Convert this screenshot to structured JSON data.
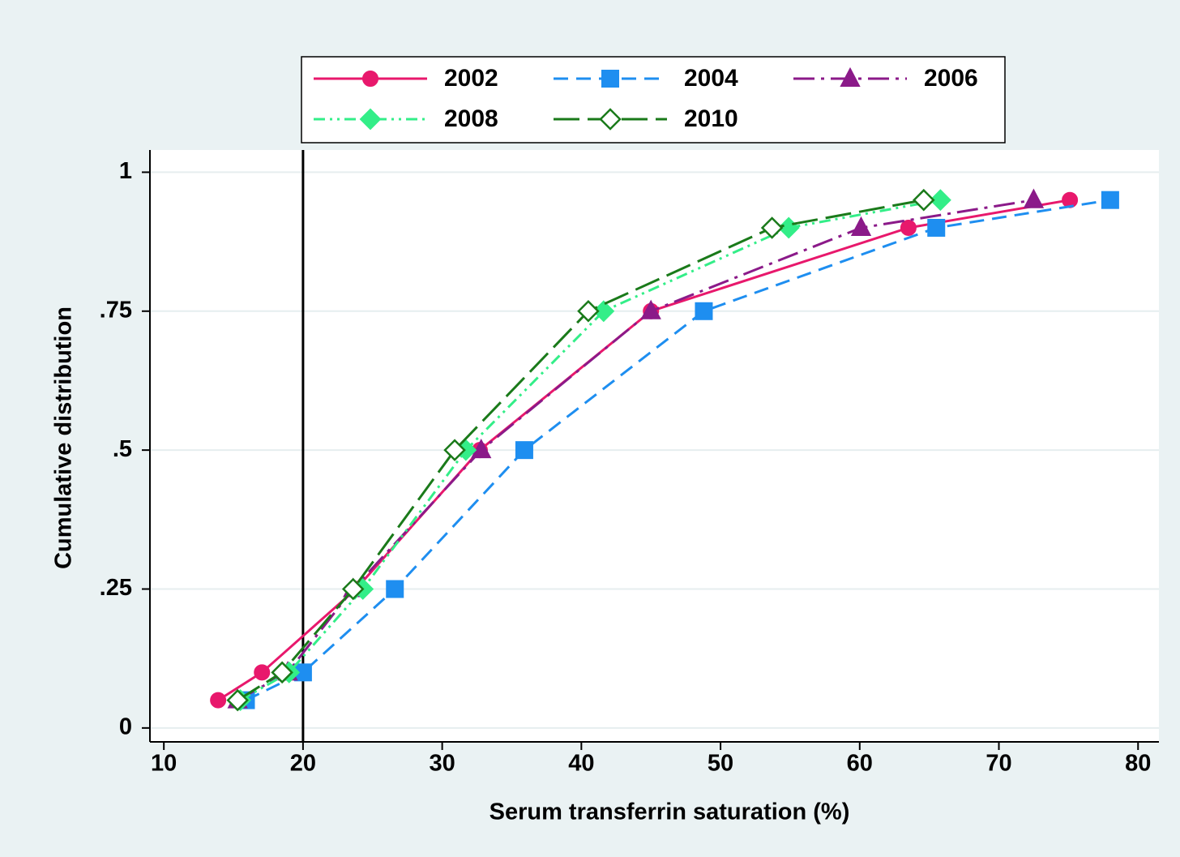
{
  "chart_data": {
    "type": "line",
    "xlabel": "Serum transferrin saturation (%)",
    "ylabel": "Cumulative distribution",
    "xlim": [
      9,
      81.5
    ],
    "ylim": [
      -0.025,
      1.04
    ],
    "xticks": [
      10,
      20,
      30,
      40,
      50,
      60,
      70,
      80
    ],
    "yticks": [
      0,
      {
        "value": 0.25,
        "label": ".25"
      },
      {
        "value": 0.5,
        "label": ".5"
      },
      {
        "value": 0.75,
        "label": ".75"
      },
      1
    ],
    "grid": true,
    "xline": 20,
    "legend": "top",
    "series": [
      {
        "name": "2002",
        "color": "#e8186c",
        "dash": "solid",
        "marker": "circle",
        "x": [
          13.9,
          17.05,
          23.8,
          32.7,
          45.0,
          63.5,
          75.1
        ],
        "values": [
          0.05,
          0.1,
          0.25,
          0.5,
          0.75,
          0.9,
          0.95
        ]
      },
      {
        "name": "2004",
        "color": "#1e8ef0",
        "dash": "dash",
        "marker": "square",
        "x": [
          15.9,
          20.0,
          26.6,
          35.9,
          48.8,
          65.5,
          78.0
        ],
        "values": [
          0.05,
          0.1,
          0.25,
          0.5,
          0.75,
          0.9,
          0.95
        ]
      },
      {
        "name": "2006",
        "color": "#8b1a89",
        "dash": "dashdot",
        "marker": "triangle",
        "x": [
          15.3,
          18.9,
          23.6,
          32.8,
          45.0,
          60.1,
          72.5
        ],
        "values": [
          0.05,
          0.1,
          0.25,
          0.5,
          0.75,
          0.9,
          0.95
        ]
      },
      {
        "name": "2008",
        "color": "#33ee88",
        "dash": "dashdotdot",
        "marker": "diamond",
        "x": [
          15.5,
          19.0,
          24.3,
          31.7,
          41.6,
          54.9,
          65.8
        ],
        "values": [
          0.05,
          0.1,
          0.25,
          0.5,
          0.75,
          0.9,
          0.95
        ]
      },
      {
        "name": "2010",
        "color": "#1a7a1a",
        "dash": "longdash",
        "marker": "hollow-diamond",
        "x": [
          15.3,
          18.5,
          23.6,
          30.9,
          40.5,
          53.7,
          64.6
        ],
        "values": [
          0.05,
          0.1,
          0.25,
          0.5,
          0.75,
          0.9,
          0.95
        ]
      }
    ]
  }
}
